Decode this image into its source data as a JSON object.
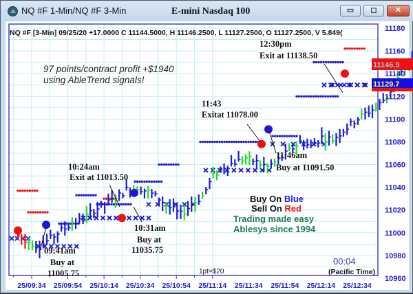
{
  "window": {
    "title": "NQ #F 1-Min/NQ #F 3-Min",
    "chart_title": "E-mini Nasdaq 100",
    "buttons": {
      "minimize": "▭",
      "maximize": "◻",
      "close": "✕"
    }
  },
  "info_line": "NQ #F [3-Min] 09/25/20  +17.0000 C 11144.5000, H 11146.2500, L 11127.2500, O 11127.2500, V 5.849(",
  "annotations": {
    "profit_line1": "97 points/contract profit +$1940",
    "profit_line2": "using AbleTrend signals!",
    "a1_time": "09:41am",
    "a1_action": "Buy at",
    "a1_price": "11005.75",
    "a2_time": "10:24am",
    "a2_text": "Exit at 11013.50",
    "a3_time": "10:31am",
    "a3_action": "Buy at",
    "a3_price": "11035.75",
    "a4_time": "11:43",
    "a4_text": "Exitat 11078.00",
    "a5_time": "11:46am",
    "a5_text": "Buy at 11091.50",
    "a6_time": "12:30pm",
    "a6_text": "Exit at 11138.50",
    "legend_buy_prefix": "Buy On ",
    "legend_buy_color_word": "Blue",
    "legend_sell_prefix": "Sell On ",
    "legend_sell_color_word": "Red",
    "tagline1": "Trading made easy",
    "tagline2": "Ablesys since 1994",
    "point_value": "1pt=$20",
    "countdown": "00:04",
    "timezone": "(Pacific Time)"
  },
  "price_labels": {
    "red": "11146.9",
    "blue": "11129.7"
  },
  "colors": {
    "up_bar": "#1a1ad6",
    "neutral_bar": "#22dd22",
    "down_bar": "#ee1111",
    "stop_line": "#1a1ad6",
    "grid": "#bfeff5",
    "axis": "#1a1ad6",
    "tagline": "#1e7a55",
    "axis_text": "#2020d0"
  },
  "chart_data": {
    "type": "bar",
    "subtype": "ohlc-price-chart",
    "title": "E-mini Nasdaq 100",
    "symbol": "NQ #F",
    "interval": "3-Min",
    "date": "09/25/20",
    "xlabel": "Time (Pacific Time)",
    "ylabel": "",
    "x_ticks": [
      "25/09:34",
      "25/09:54",
      "25/10:14",
      "25/10:34",
      "25/10:54",
      "25/11:14",
      "25/11:34",
      "25/11:54",
      "25/12:14",
      "25/12:34"
    ],
    "y_ticks": [
      11180,
      11160,
      11140,
      11120,
      11100,
      11080,
      11060,
      11040,
      11020,
      11000,
      10980,
      10960
    ],
    "ylim": [
      10960,
      11180
    ],
    "grid": true,
    "last_bar": {
      "change": 17.0,
      "close": 11144.5,
      "high": 11146.25,
      "low": 11127.25,
      "open": 11127.25,
      "volume": "5.849("
    },
    "signals": [
      {
        "time": "09:41am",
        "type": "buy",
        "price": 11005.75
      },
      {
        "time": "10:24am",
        "type": "exit",
        "price": 11013.5
      },
      {
        "time": "10:31am",
        "type": "buy",
        "price": 11035.75
      },
      {
        "time": "11:43",
        "type": "exit",
        "price": 11078.0
      },
      {
        "time": "11:46am",
        "type": "buy",
        "price": 11091.5
      },
      {
        "time": "12:30pm",
        "type": "exit",
        "price": 11138.5
      }
    ],
    "profit_points": 97,
    "profit_usd": 1940,
    "price_markers": {
      "red": 11146.9,
      "blue": 11129.7
    },
    "approx_close_path": [
      [
        0,
        10998
      ],
      [
        6,
        10992
      ],
      [
        12,
        10988
      ],
      [
        18,
        10995
      ],
      [
        24,
        11002
      ],
      [
        30,
        11008
      ],
      [
        36,
        11012
      ],
      [
        42,
        11020
      ],
      [
        48,
        11025
      ],
      [
        54,
        11030
      ],
      [
        60,
        11038
      ],
      [
        66,
        11040
      ],
      [
        72,
        11036
      ],
      [
        78,
        11030
      ],
      [
        84,
        11022
      ],
      [
        90,
        11016
      ],
      [
        96,
        11025
      ],
      [
        102,
        11032
      ],
      [
        108,
        11050
      ],
      [
        114,
        11058
      ],
      [
        120,
        11062
      ],
      [
        126,
        11066
      ],
      [
        132,
        11062
      ],
      [
        138,
        11058
      ],
      [
        144,
        11064
      ],
      [
        150,
        11072
      ],
      [
        156,
        11080
      ],
      [
        162,
        11076
      ],
      [
        168,
        11084
      ],
      [
        174,
        11082
      ],
      [
        180,
        11090
      ],
      [
        186,
        11098
      ],
      [
        192,
        11105
      ],
      [
        198,
        11110
      ],
      [
        204,
        11120
      ],
      [
        210,
        11135
      ],
      [
        216,
        11150
      ],
      [
        222,
        11158
      ],
      [
        228,
        11152
      ],
      [
        234,
        11145
      ],
      [
        240,
        11138
      ],
      [
        246,
        11142
      ],
      [
        252,
        11135
      ]
    ]
  }
}
